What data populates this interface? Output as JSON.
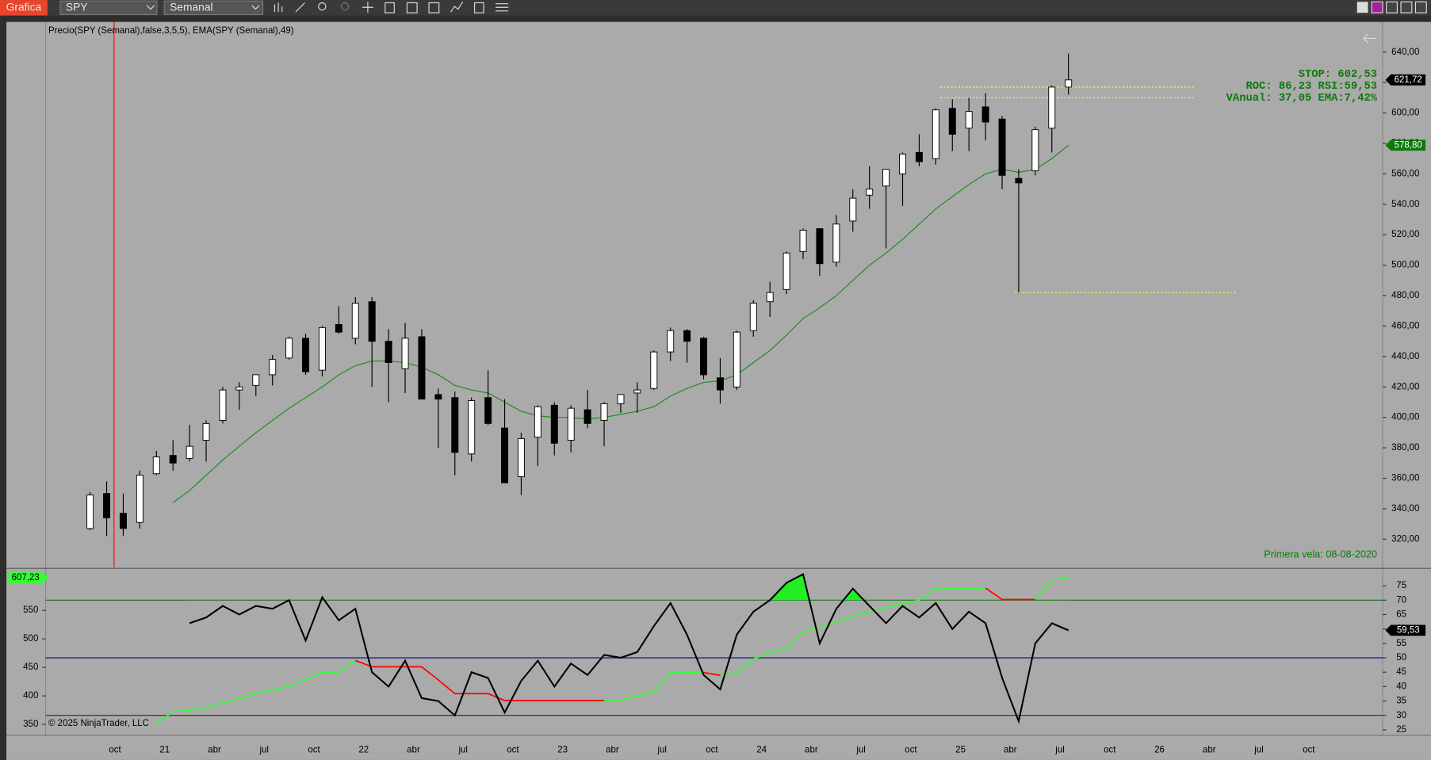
{
  "toolbar": {
    "app_button": "Grafica",
    "symbol": "SPY",
    "period": "Semanal"
  },
  "chart_data": [
    {
      "type": "candlestick",
      "title": "Precio(SPY (Semanal),false,3,5,5), EMA(SPY (Semanal),49)",
      "open": [
        327,
        350,
        337,
        331,
        363,
        375,
        373,
        385,
        398,
        418,
        421,
        428,
        439,
        452,
        431,
        461,
        452,
        476,
        450,
        432,
        453,
        415,
        413,
        376,
        413,
        393,
        361,
        387,
        408,
        385,
        405,
        398,
        409,
        416,
        419,
        443,
        457,
        452,
        426,
        420,
        457,
        476,
        484,
        509,
        524,
        502,
        529,
        546,
        552,
        560,
        574,
        570,
        603,
        590,
        604,
        596,
        557,
        562,
        590,
        617
      ],
      "high": [
        351,
        358,
        350,
        365,
        378,
        385,
        395,
        398,
        420,
        423,
        428,
        441,
        453,
        455,
        460,
        473,
        479,
        479,
        458,
        462,
        458,
        419,
        417,
        413,
        431,
        412,
        390,
        408,
        410,
        408,
        418,
        410,
        415,
        423,
        444,
        459,
        458,
        453,
        439,
        457,
        477,
        489,
        509,
        524,
        524,
        533,
        550,
        565,
        563,
        574,
        586,
        603,
        609,
        610,
        613,
        598,
        563,
        591,
        618,
        639
      ],
      "low": [
        326,
        322,
        322,
        327,
        362,
        365,
        371,
        371,
        396,
        405,
        414,
        421,
        438,
        428,
        427,
        455,
        448,
        420,
        410,
        416,
        412,
        380,
        362,
        371,
        395,
        357,
        349,
        368,
        375,
        377,
        393,
        381,
        403,
        403,
        418,
        437,
        436,
        425,
        409,
        418,
        453,
        466,
        481,
        504,
        493,
        499,
        522,
        537,
        511,
        539,
        565,
        566,
        575,
        575,
        582,
        550,
        482,
        559,
        574,
        612
      ],
      "close": [
        349,
        334,
        327,
        362,
        374,
        370,
        381,
        396,
        418,
        420,
        428,
        438,
        452,
        430,
        459,
        456,
        475,
        450,
        436,
        452,
        412,
        412,
        377,
        411,
        396,
        357,
        386,
        407,
        383,
        406,
        396,
        409,
        415,
        418,
        443,
        457,
        450,
        428,
        418,
        456,
        475,
        482,
        508,
        523,
        501,
        527,
        544,
        550,
        563,
        573,
        568,
        602,
        586,
        601,
        594,
        559,
        554,
        589,
        617,
        621.72
      ],
      "close_last_label": "621,72",
      "up_color": "#ffffff",
      "down_color": "#000000",
      "ema": {
        "color": "#1f8a1f",
        "last_label": "578,80",
        "values": [
          null,
          null,
          null,
          null,
          null,
          344,
          352,
          362,
          372,
          381,
          390,
          398,
          406,
          413,
          420,
          428,
          434,
          437,
          437,
          436,
          433,
          428,
          421,
          418,
          416,
          410,
          404,
          401,
          400,
          400,
          399,
          400,
          402,
          404,
          407,
          414,
          419,
          423,
          424,
          428,
          436,
          444,
          454,
          465,
          472,
          480,
          490,
          500,
          508,
          517,
          527,
          537,
          545,
          553,
          560,
          563,
          561,
          563,
          570,
          578.8
        ]
      },
      "levels": {
        "color": "#ffff55",
        "values": [
          617,
          610,
          482
        ]
      },
      "annotations": [
        "STOP: 602,53",
        "ROC: 86,23 RSI:59,53",
        "VAnual: 37,05 EMA:7,42%"
      ],
      "footnote": "Primera vela: 08-08-2020",
      "ylim": [
        301.4,
        659.8
      ],
      "yticks": [
        {
          "value": 320,
          "label": "320,00"
        },
        {
          "value": 340,
          "label": "340,00"
        },
        {
          "value": 360,
          "label": "360,00"
        },
        {
          "value": 380,
          "label": "380,00"
        },
        {
          "value": 400,
          "label": "400,00"
        },
        {
          "value": 420,
          "label": "420,00"
        },
        {
          "value": 440,
          "label": "440,00"
        },
        {
          "value": 460,
          "label": "460,00"
        },
        {
          "value": 480,
          "label": "480,00"
        },
        {
          "value": 500,
          "label": "500,00"
        },
        {
          "value": 520,
          "label": "520,00"
        },
        {
          "value": 540,
          "label": "540,00"
        },
        {
          "value": 560,
          "label": "560,00"
        },
        {
          "value": 580,
          "label": "580,00"
        },
        {
          "value": 600,
          "label": "600,00"
        },
        {
          "value": 620,
          "label": "620,00"
        },
        {
          "value": 640,
          "label": "640,00"
        }
      ],
      "x_labels": [
        "oct",
        "21",
        "abr",
        "jul",
        "oct",
        "22",
        "abr",
        "jul",
        "oct",
        "23",
        "abr",
        "jul",
        "oct",
        "24",
        "abr",
        "jul",
        "oct",
        "25",
        "abr",
        "jul",
        "oct",
        "26",
        "abr",
        "jul",
        "oct"
      ]
    },
    {
      "type": "line",
      "copyright": "© 2025 NinjaTrader, LLC",
      "rsi": {
        "color": "#000000",
        "fill_above": 70,
        "fill_color": "#22ee22",
        "last_label": "59,53",
        "values": [
          null,
          null,
          null,
          null,
          null,
          null,
          62,
          64,
          68,
          65,
          68,
          67,
          70,
          56,
          71,
          63,
          67,
          45,
          40,
          49,
          36,
          35,
          30,
          45,
          43,
          31,
          42,
          49,
          40,
          48,
          44,
          51,
          50,
          52,
          61,
          69,
          58,
          44,
          39,
          58,
          66,
          70,
          76,
          79,
          55,
          67,
          74,
          68,
          62,
          68,
          64,
          69,
          60,
          66,
          62,
          43,
          28,
          55,
          62,
          59.53
        ]
      },
      "stop": {
        "up_color": "#33ff33",
        "down_color": "#ff0000",
        "last_label": "607,23",
        "up": [
          null,
          null,
          null,
          null,
          353,
          372,
          375,
          379,
          388,
          395,
          404,
          410,
          417,
          428,
          441,
          441,
          462,
          null,
          null,
          null,
          null,
          null,
          null,
          null,
          null,
          null,
          null,
          null,
          null,
          null,
          null,
          392,
          393,
          400,
          408,
          441,
          441,
          441,
          436,
          441,
          465,
          475,
          484,
          513,
          520,
          529,
          540,
          548,
          555,
          561,
          568,
          589,
          589,
          589,
          589,
          null,
          null,
          569,
          603,
          607.23
        ],
        "down": [
          null,
          null,
          null,
          null,
          null,
          null,
          null,
          null,
          null,
          null,
          null,
          null,
          null,
          null,
          null,
          null,
          462,
          451,
          451,
          451,
          451,
          428,
          404,
          404,
          404,
          392,
          392,
          392,
          392,
          392,
          392,
          392,
          null,
          null,
          null,
          null,
          null,
          441,
          436,
          null,
          null,
          null,
          null,
          null,
          null,
          null,
          null,
          null,
          null,
          null,
          null,
          null,
          null,
          null,
          589,
          569,
          569,
          569,
          null,
          null
        ]
      },
      "hlines": [
        {
          "value": 70,
          "color": "#1e6e1e"
        },
        {
          "value": 50,
          "color": "#000090"
        },
        {
          "value": 30,
          "color": "#900000"
        }
      ],
      "ylim": [
        23.4,
        80.4
      ],
      "yticks": [
        25,
        30,
        35,
        40,
        45,
        50,
        55,
        60,
        65,
        70,
        75
      ],
      "y2lim": [
        332.4,
        620.4
      ],
      "y2ticks": [
        350,
        400,
        450,
        500,
        550
      ]
    }
  ]
}
